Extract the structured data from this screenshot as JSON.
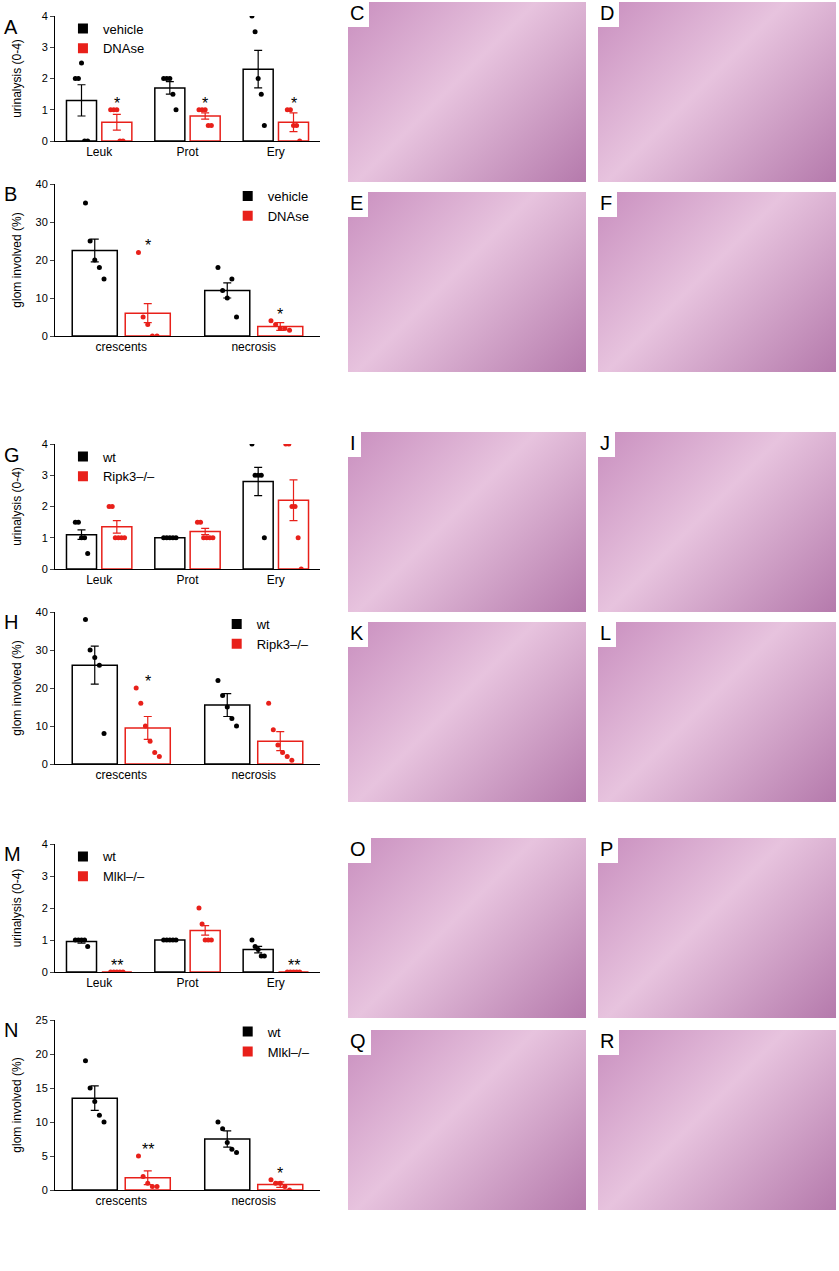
{
  "chart_data": [
    {
      "type": "bar",
      "panel": "A",
      "y_label": "urinalysis (0-4)",
      "categories": [
        "Leuk",
        "Prot",
        "Ery"
      ],
      "ylim": [
        0,
        4
      ],
      "yticks": [
        0,
        1,
        2,
        3,
        4
      ],
      "legend": "top left",
      "series": [
        {
          "name": "vehicle",
          "color": "#000000",
          "values": [
            1.3,
            1.7,
            2.3
          ],
          "error": [
            0.5,
            0.2,
            0.6
          ],
          "points": [
            [
              2,
              2,
              2.5,
              0,
              0
            ],
            [
              2,
              2,
              2,
              1.5,
              1
            ],
            [
              4,
              3.5,
              2,
              1.5,
              0.5
            ]
          ]
        },
        {
          "name": "DNAse",
          "color": "#e8201a",
          "values": [
            0.6,
            0.8,
            0.6
          ],
          "error": [
            0.25,
            0.1,
            0.3
          ],
          "points": [
            [
              1,
              1,
              1,
              0,
              0
            ],
            [
              1,
              1,
              1,
              0.5,
              0.5
            ],
            [
              1,
              1,
              0.5,
              0.5,
              0
            ]
          ],
          "stars": [
            "*",
            "*",
            "*"
          ]
        }
      ]
    },
    {
      "type": "bar",
      "panel": "B",
      "y_label": "glom involved (%)",
      "categories": [
        "crescents",
        "necrosis"
      ],
      "ylim": [
        0,
        40
      ],
      "yticks": [
        0,
        10,
        20,
        30,
        40
      ],
      "legend": "top right",
      "series": [
        {
          "name": "vehicle",
          "color": "#000000",
          "values": [
            22.5,
            12
          ],
          "error": [
            3,
            2
          ],
          "points": [
            [
              35,
              25,
              20,
              18,
              15
            ],
            [
              18,
              12,
              10,
              15,
              5
            ]
          ]
        },
        {
          "name": "DNAse",
          "color": "#e8201a",
          "values": [
            6,
            2.5
          ],
          "error": [
            2.5,
            1
          ],
          "points": [
            [
              22,
              5,
              3,
              0,
              0
            ],
            [
              4,
              3,
              2,
              2,
              1.5
            ]
          ],
          "stars": [
            "*",
            "*"
          ]
        }
      ]
    },
    {
      "type": "bar",
      "panel": "G",
      "y_label": "urinalysis (0-4)",
      "categories": [
        "Leuk",
        "Prot",
        "Ery"
      ],
      "ylim": [
        0,
        4
      ],
      "yticks": [
        0,
        1,
        2,
        3,
        4
      ],
      "legend": "top left",
      "series": [
        {
          "name": "wt",
          "color": "#000000",
          "values": [
            1.1,
            1.0,
            2.8
          ],
          "error": [
            0.15,
            0,
            0.45
          ],
          "points": [
            [
              1.5,
              1.5,
              1,
              1,
              0.5
            ],
            [
              1,
              1,
              1,
              1,
              1
            ],
            [
              4,
              3,
              3,
              3,
              1
            ]
          ]
        },
        {
          "name": "Ripk3–/–",
          "color": "#e8201a",
          "values": [
            1.35,
            1.2,
            2.2
          ],
          "error": [
            0.2,
            0.1,
            0.65
          ],
          "points": [
            [
              2,
              2,
              1,
              1,
              1,
              1
            ],
            [
              1.5,
              1.5,
              1,
              1,
              1,
              1
            ],
            [
              4,
              4,
              2,
              2,
              1,
              0
            ]
          ]
        }
      ]
    },
    {
      "type": "bar",
      "panel": "H",
      "y_label": "glom involved (%)",
      "categories": [
        "crescents",
        "necrosis"
      ],
      "ylim": [
        0,
        40
      ],
      "yticks": [
        0,
        10,
        20,
        30,
        40
      ],
      "legend": "top right",
      "series": [
        {
          "name": "wt",
          "color": "#000000",
          "values": [
            26,
            15.5
          ],
          "error": [
            5,
            3
          ],
          "points": [
            [
              38,
              30,
              28,
              26,
              8
            ],
            [
              22,
              18,
              15,
              12,
              10
            ]
          ]
        },
        {
          "name": "Ripk3–/–",
          "color": "#e8201a",
          "values": [
            9.5,
            6
          ],
          "error": [
            3,
            2.5
          ],
          "points": [
            [
              20,
              16,
              10,
              6,
              3,
              2
            ],
            [
              16,
              9,
              5,
              3,
              2,
              1
            ]
          ],
          "stars": [
            "*",
            null
          ]
        }
      ]
    },
    {
      "type": "bar",
      "panel": "M",
      "y_label": "urinalysis (0-4)",
      "categories": [
        "Leuk",
        "Prot",
        "Ery"
      ],
      "ylim": [
        0,
        4
      ],
      "yticks": [
        0,
        1,
        2,
        3,
        4
      ],
      "legend": "top left",
      "series": [
        {
          "name": "wt",
          "color": "#000000",
          "values": [
            0.95,
            1,
            0.7
          ],
          "error": [
            0.05,
            0,
            0.1
          ],
          "points": [
            [
              1,
              1,
              1,
              1,
              0.8
            ],
            [
              1,
              1,
              1,
              1,
              1
            ],
            [
              1,
              0.8,
              0.7,
              0.5,
              0.5
            ]
          ]
        },
        {
          "name": "Mlkl–/–",
          "color": "#e8201a",
          "values": [
            0,
            1.3,
            0
          ],
          "error": [
            0,
            0.15,
            0
          ],
          "points": [
            [
              0,
              0,
              0,
              0,
              0
            ],
            [
              2,
              1.5,
              1,
              1,
              1
            ],
            [
              0,
              0,
              0,
              0,
              0
            ]
          ],
          "stars": [
            "**",
            null,
            "**"
          ]
        }
      ]
    },
    {
      "type": "bar",
      "panel": "N",
      "y_label": "glom involved (%)",
      "categories": [
        "crescents",
        "necrosis"
      ],
      "ylim": [
        0,
        25
      ],
      "yticks": [
        0,
        5,
        10,
        15,
        20,
        25
      ],
      "legend": "top right",
      "series": [
        {
          "name": "wt",
          "color": "#000000",
          "values": [
            13.5,
            7.5
          ],
          "error": [
            1.8,
            1.2
          ],
          "points": [
            [
              19,
              15,
              13,
              11,
              10
            ],
            [
              10,
              9,
              7,
              6,
              5.5
            ]
          ]
        },
        {
          "name": "Mlkl–/–",
          "color": "#e8201a",
          "values": [
            1.8,
            0.8
          ],
          "error": [
            1,
            0.4
          ],
          "points": [
            [
              5,
              2,
              1,
              0.5,
              0.5
            ],
            [
              1.5,
              1,
              1,
              0.5,
              0
            ]
          ],
          "stars": [
            "**",
            "*"
          ]
        }
      ]
    }
  ],
  "image_panels": [
    "C",
    "D",
    "E",
    "F",
    "I",
    "J",
    "K",
    "L",
    "O",
    "P",
    "Q",
    "R"
  ]
}
